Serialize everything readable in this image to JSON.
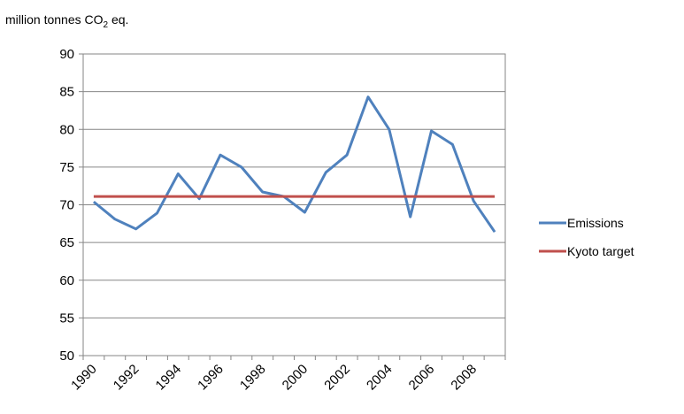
{
  "chart_data": {
    "type": "line",
    "ylabel_prefix": "million tonnes CO",
    "ylabel_sub": "2",
    "ylabel_suffix": " eq.",
    "ylim": [
      50,
      90
    ],
    "y_ticks": [
      "50",
      "55",
      "60",
      "65",
      "70",
      "75",
      "80",
      "85",
      "90"
    ],
    "x": [
      1990,
      1991,
      1992,
      1993,
      1994,
      1995,
      1996,
      1997,
      1998,
      1999,
      2000,
      2001,
      2002,
      2003,
      2004,
      2005,
      2006,
      2007,
      2008,
      2009
    ],
    "x_tick_labels": [
      "1990",
      "",
      "1992",
      "",
      "1994",
      "",
      "1996",
      "",
      "1998",
      "",
      "2000",
      "",
      "2002",
      "",
      "2004",
      "",
      "2006",
      "",
      "2008",
      ""
    ],
    "grid": true,
    "legend_position": "right",
    "series": [
      {
        "name": "Emissions",
        "color": "#4F81BD",
        "values": [
          70.4,
          68.1,
          66.8,
          68.9,
          74.1,
          70.8,
          76.6,
          75.0,
          71.7,
          71.1,
          69.0,
          74.3,
          76.6,
          84.3,
          80.0,
          68.4,
          79.8,
          78.0,
          70.5,
          66.4
        ]
      },
      {
        "name": "Kyoto target",
        "color": "#C0504D",
        "values": [
          71.1,
          71.1,
          71.1,
          71.1,
          71.1,
          71.1,
          71.1,
          71.1,
          71.1,
          71.1,
          71.1,
          71.1,
          71.1,
          71.1,
          71.1,
          71.1,
          71.1,
          71.1,
          71.1,
          71.1
        ]
      }
    ]
  }
}
